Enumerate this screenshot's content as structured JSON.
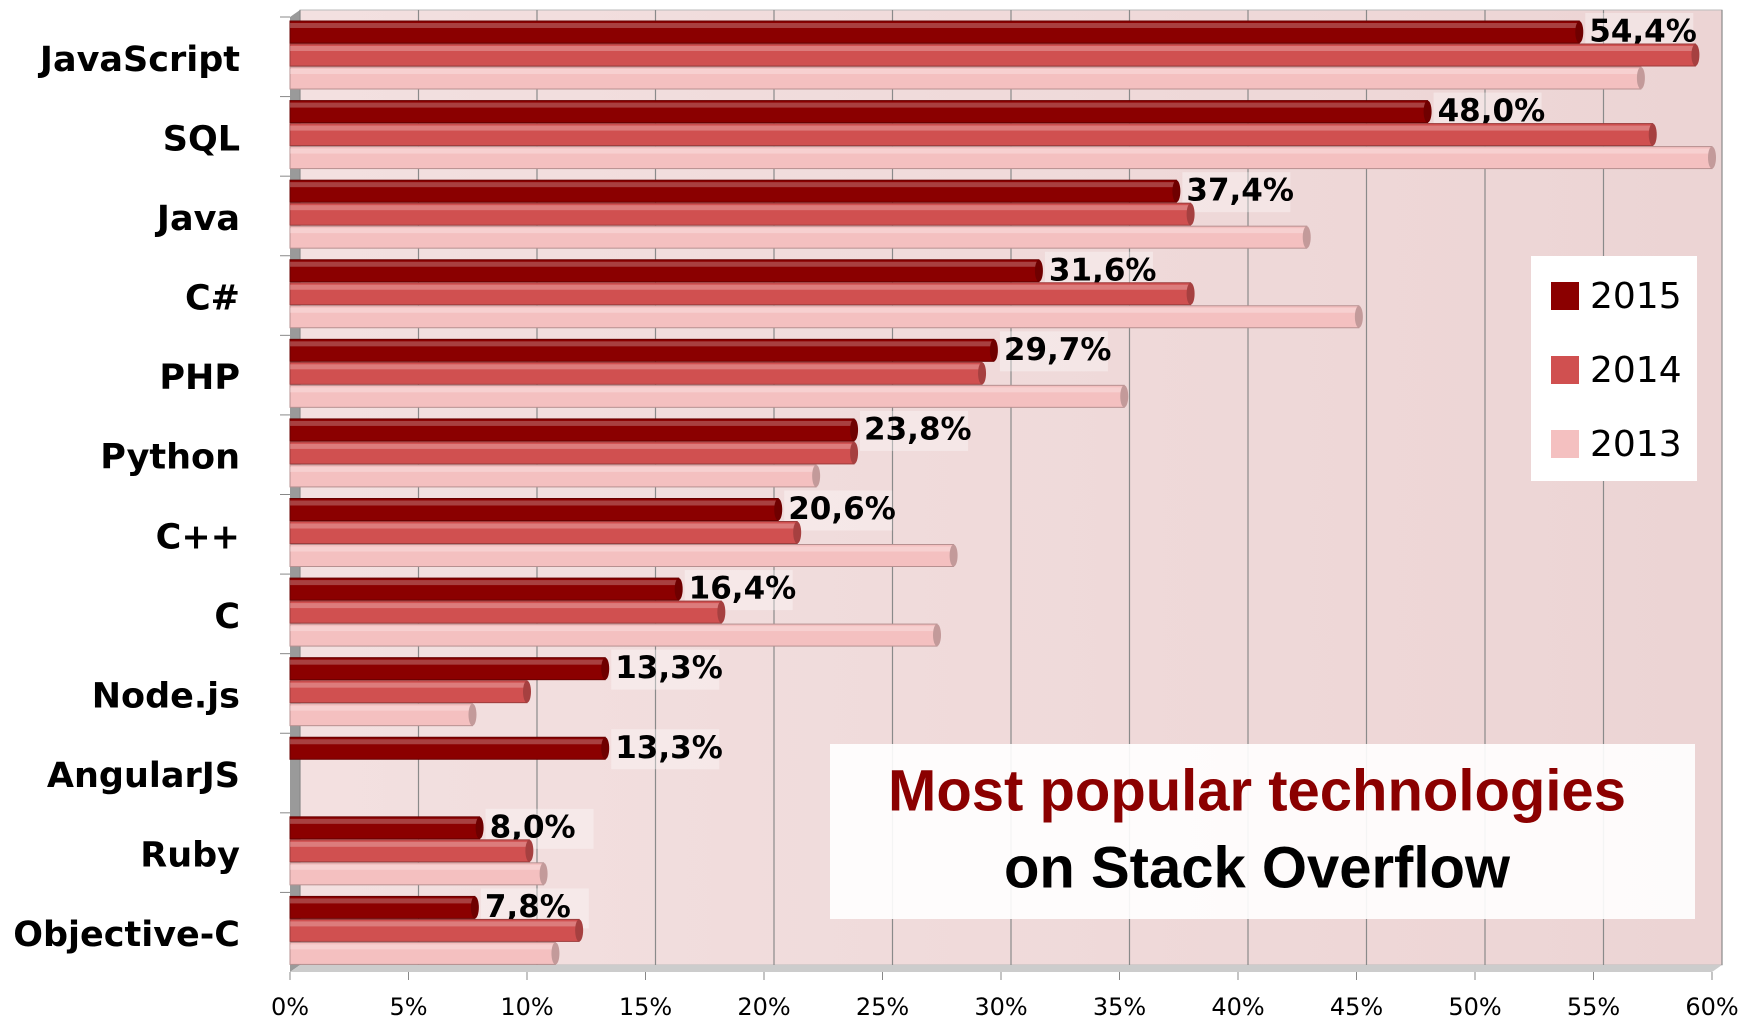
{
  "chart_data": {
    "type": "bar",
    "orientation": "horizontal",
    "title": "Most popular technologies",
    "subtitle": "on Stack Overflow",
    "categories": [
      "JavaScript",
      "SQL",
      "Java",
      "C#",
      "PHP",
      "Python",
      "C++",
      "C",
      "Node.js",
      "AngularJS",
      "Ruby",
      "Objective-C"
    ],
    "series": [
      {
        "name": "2015",
        "color": "#8b0000",
        "values": [
          54.4,
          48.0,
          37.4,
          31.6,
          29.7,
          23.8,
          20.6,
          16.4,
          13.3,
          13.3,
          8.0,
          7.8
        ],
        "value_labels": [
          "54,4%",
          "48,0%",
          "37,4%",
          "31,6%",
          "29,7%",
          "23,8%",
          "20,6%",
          "16,4%",
          "13,3%",
          "13,3%",
          "8,0%",
          "7,8%"
        ]
      },
      {
        "name": "2014",
        "color": "#d05050",
        "values": [
          59.3,
          57.5,
          38.0,
          38.0,
          29.2,
          23.8,
          21.4,
          18.2,
          10.0,
          null,
          10.1,
          12.2
        ]
      },
      {
        "name": "2013",
        "color": "#f4c0c0",
        "values": [
          57.0,
          60.0,
          42.9,
          45.1,
          35.2,
          22.2,
          28.0,
          27.3,
          7.7,
          null,
          10.7,
          11.2
        ]
      }
    ],
    "xlim": [
      0,
      60
    ],
    "xticks": [
      {
        "value": 0,
        "label": "0%"
      },
      {
        "value": 5,
        "label": "5%"
      },
      {
        "value": 10,
        "label": "10%"
      },
      {
        "value": 15,
        "label": "15%"
      },
      {
        "value": 20,
        "label": "20%"
      },
      {
        "value": 25,
        "label": "25%"
      },
      {
        "value": 30,
        "label": "30%"
      },
      {
        "value": 35,
        "label": "35%"
      },
      {
        "value": 40,
        "label": "40%"
      },
      {
        "value": 45,
        "label": "45%"
      },
      {
        "value": 50,
        "label": "50%"
      },
      {
        "value": 55,
        "label": "55%"
      },
      {
        "value": 60,
        "label": "60%"
      }
    ],
    "grid": true,
    "legend": "right"
  }
}
